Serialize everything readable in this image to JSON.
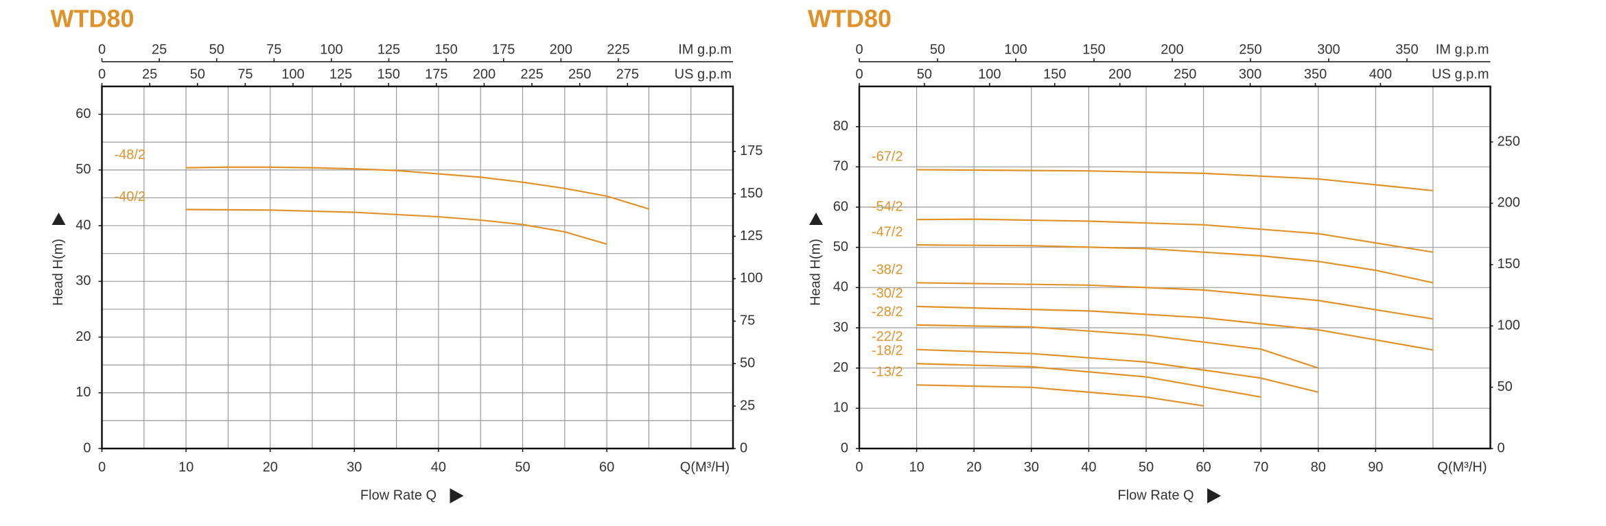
{
  "chart_data": [
    {
      "type": "line",
      "title": "WTD80",
      "x_label": "Flow Rate Q",
      "y_label": "Head H(m)",
      "x_unit_label": "Q(M³/H)",
      "xlim": [
        0,
        75
      ],
      "xticks": [
        0,
        10,
        20,
        30,
        40,
        50,
        60
      ],
      "ylim": [
        0,
        65
      ],
      "yticks": [
        0,
        10,
        20,
        30,
        40,
        50,
        60
      ],
      "grid": {
        "x": 5,
        "y": 5
      },
      "y2lim": [
        0,
        213.25
      ],
      "y2ticks": [
        0,
        25,
        50,
        75,
        100,
        125,
        150,
        175
      ],
      "top_axes": [
        {
          "label": "IM g.p.m",
          "lim": [
            0,
            274.96
          ],
          "ticks": [
            0,
            25,
            50,
            75,
            100,
            125,
            150,
            175,
            200,
            225
          ]
        },
        {
          "label": "US g.p.m",
          "lim": [
            0,
            330.2
          ],
          "ticks": [
            0,
            25,
            50,
            75,
            100,
            125,
            150,
            175,
            200,
            225,
            250,
            275
          ]
        }
      ],
      "series": [
        {
          "name": "-48/2",
          "color": "#e0922a",
          "x": [
            10,
            15,
            20,
            25,
            30,
            35,
            40,
            45,
            50,
            55,
            60,
            65
          ],
          "values": [
            50.4,
            50.5,
            50.5,
            50.4,
            50.2,
            49.9,
            49.3,
            48.7,
            47.8,
            46.7,
            45.3,
            43
          ]
        },
        {
          "name": "-40/2",
          "color": "#e0922a",
          "x": [
            10,
            20,
            30,
            40,
            45,
            50,
            55,
            60
          ],
          "values": [
            42.9,
            42.8,
            42.4,
            41.6,
            41,
            40.2,
            38.9,
            36.7
          ]
        }
      ]
    },
    {
      "type": "line",
      "title": "WTD80",
      "x_label": "Flow Rate Q",
      "y_label": "Head H(m)",
      "x_unit_label": "Q(M³/H)",
      "xlim": [
        0,
        110
      ],
      "xticks": [
        0,
        10,
        20,
        30,
        40,
        50,
        60,
        70,
        80,
        90
      ],
      "ylim": [
        0,
        90
      ],
      "yticks": [
        0,
        10,
        20,
        30,
        40,
        50,
        60,
        70,
        80
      ],
      "grid": {
        "x": 10,
        "y": 10
      },
      "y2lim": [
        0,
        295.3
      ],
      "y2ticks": [
        0,
        50,
        100,
        150,
        200,
        250
      ],
      "top_axes": [
        {
          "label": "IM g.p.m",
          "lim": [
            0,
            403.3
          ],
          "ticks": [
            0,
            50,
            100,
            150,
            200,
            250,
            300,
            350
          ]
        },
        {
          "label": "US g.p.m",
          "lim": [
            0,
            484.3
          ],
          "ticks": [
            0,
            50,
            100,
            150,
            200,
            250,
            300,
            350,
            400
          ]
        }
      ],
      "series": [
        {
          "name": "-67/2",
          "color": "#e0922a",
          "x": [
            10,
            40,
            60,
            80,
            100
          ],
          "values": [
            69.3,
            69,
            68.4,
            67,
            64.1
          ]
        },
        {
          "name": "-54/2",
          "color": "#e0922a",
          "x": [
            10,
            20,
            40,
            60,
            80,
            100
          ],
          "values": [
            56.9,
            57,
            56.5,
            55.6,
            53.4,
            48.8
          ]
        },
        {
          "name": "-47/2",
          "color": "#e0922a",
          "x": [
            10,
            30,
            50,
            70,
            80,
            90,
            100
          ],
          "values": [
            50.6,
            50.4,
            49.7,
            47.9,
            46.5,
            44.3,
            41.2
          ]
        },
        {
          "name": "-38/2",
          "color": "#e0922a",
          "x": [
            10,
            40,
            60,
            80,
            100
          ],
          "values": [
            41.2,
            40.6,
            39.4,
            36.8,
            32.2
          ]
        },
        {
          "name": "-30/2",
          "color": "#e0922a",
          "x": [
            10,
            40,
            60,
            80,
            100
          ],
          "values": [
            35.3,
            34.2,
            32.5,
            29.5,
            24.5
          ]
        },
        {
          "name": "-28/2",
          "color": "#e0922a",
          "x": [
            10,
            30,
            50,
            70,
            80
          ],
          "values": [
            30.7,
            30.2,
            28.2,
            24.7,
            20
          ]
        },
        {
          "name": "-22/2",
          "color": "#e0922a",
          "x": [
            10,
            30,
            50,
            70,
            80
          ],
          "values": [
            24.6,
            23.6,
            21.5,
            17.5,
            14
          ]
        },
        {
          "name": "-18/2",
          "color": "#e0922a",
          "x": [
            10,
            30,
            50,
            70
          ],
          "values": [
            21.1,
            20.3,
            17.8,
            12.8
          ]
        },
        {
          "name": "-13/2",
          "color": "#e0922a",
          "x": [
            10,
            30,
            50,
            60
          ],
          "values": [
            15.8,
            15.2,
            12.8,
            10.6
          ]
        }
      ]
    }
  ]
}
